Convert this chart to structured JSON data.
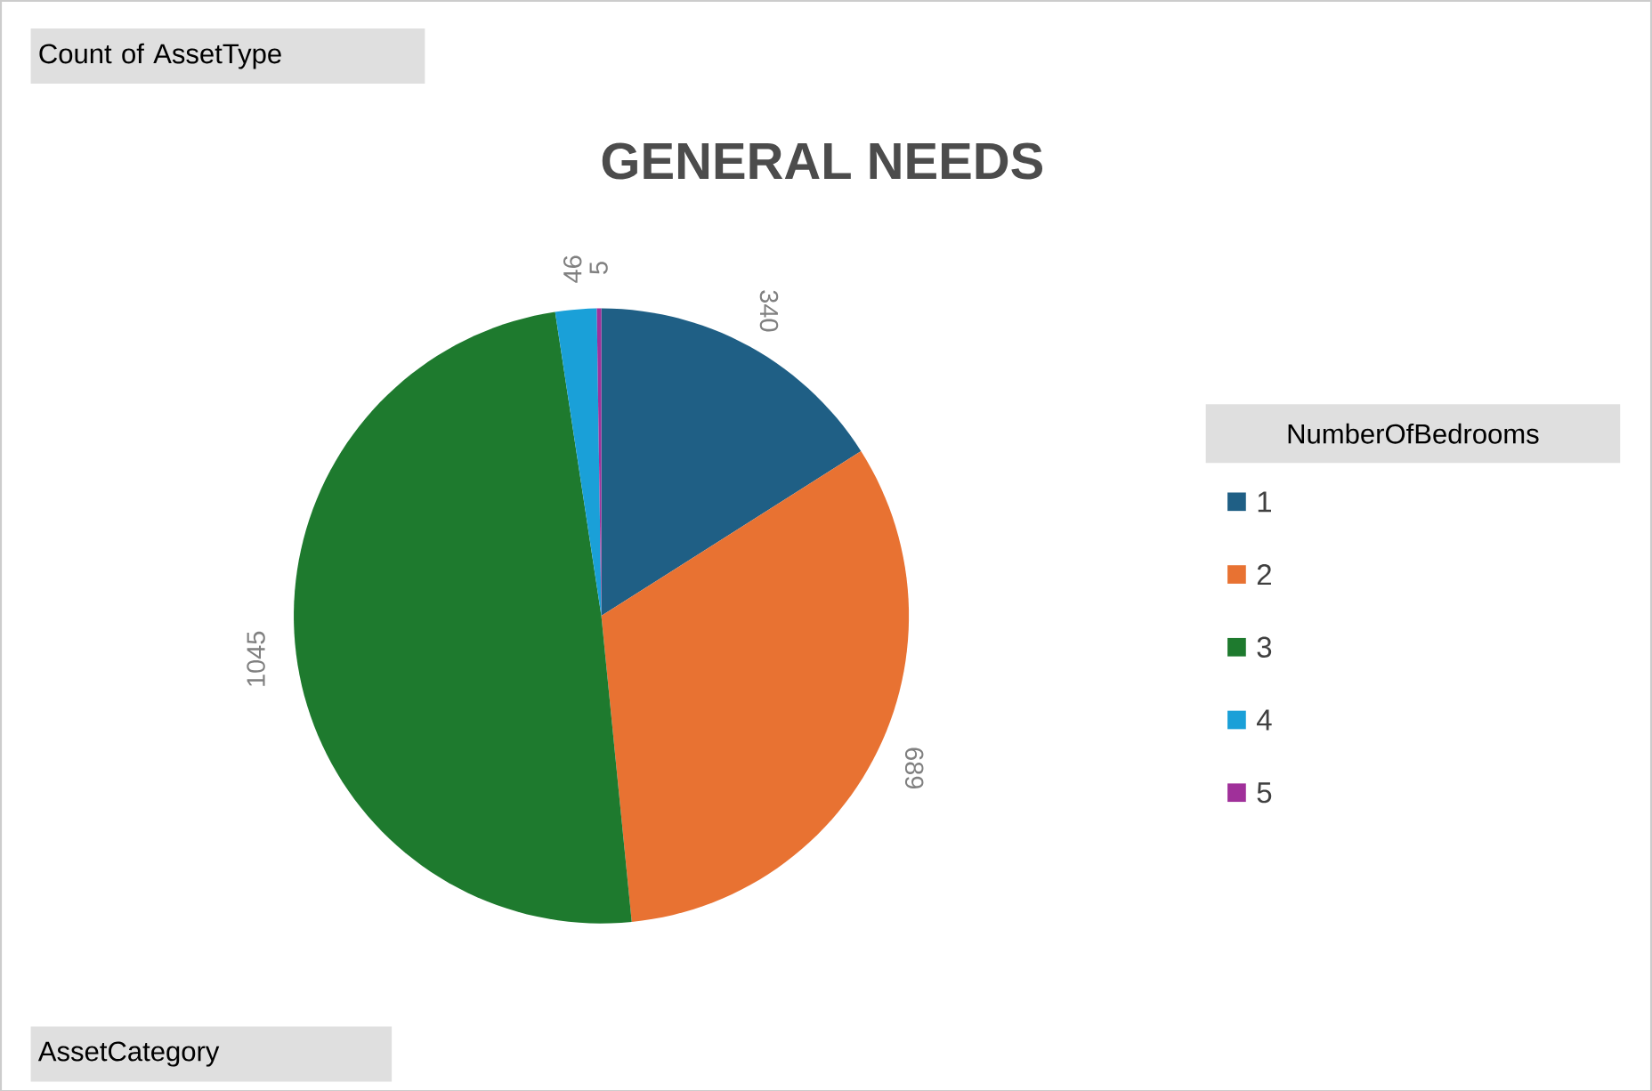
{
  "chart_data": {
    "type": "pie",
    "title": "GENERAL NEEDS",
    "legend_title": "NumberOfBedrooms",
    "legend": "right",
    "categories": [
      "1",
      "2",
      "3",
      "4",
      "5"
    ],
    "values": [
      340,
      689,
      1045,
      46,
      5
    ],
    "colors": [
      "#1f5f85",
      "#e87232",
      "#1e7a2e",
      "#1aa0d8",
      "#a0309a"
    ],
    "data_labels": true,
    "annotations": [
      "Count of AssetType",
      "AssetCategory"
    ]
  }
}
